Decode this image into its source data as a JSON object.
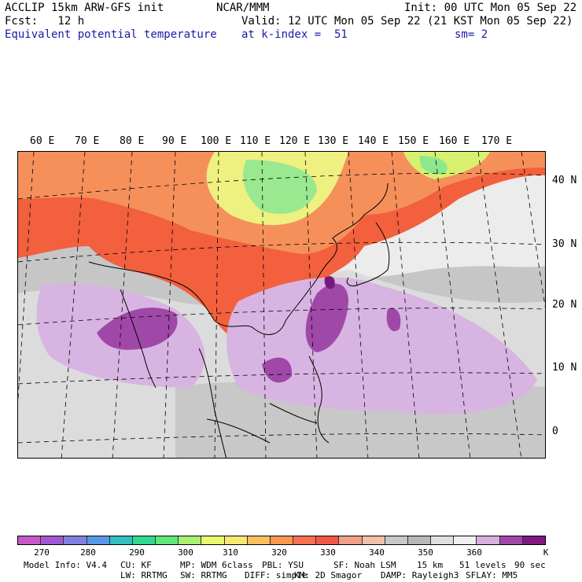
{
  "header": {
    "left_line1": "ACCLIP 15km ARW-GFS init",
    "left_line2": "Fcst:   12 h",
    "field_name": "Equivalent potential temperature",
    "center_line1": "NCAR/MMM",
    "valid": "Valid: 12 UTC Mon 05 Sep 22 (21 KST Mon 05 Sep 22)",
    "init": "Init: 00 UTC Mon 05 Sep 22",
    "level": "at k-index =  51",
    "smooth": "sm= 2"
  },
  "map": {
    "lon_labels": [
      "60 E",
      "70 E",
      "80 E",
      "90 E",
      "100 E",
      "110 E",
      "120 E",
      "130 E",
      "140 E",
      "150 E",
      "160 E",
      "170 E"
    ],
    "lat_labels": [
      "40 N",
      "30 N",
      "20 N",
      "10 N",
      "0"
    ],
    "colors": {
      "cold_green": "#8ce88c",
      "yellow_green": "#d8f070",
      "yellow": "#f4f07a",
      "orange": "#f5a050",
      "red": "#f25a3c",
      "salmon": "#f2a88a",
      "gray": "#c4c4c4",
      "light_gray": "#e6e6e6",
      "lilac": "#d8b4e2",
      "purple": "#a048a8",
      "dark_purple": "#7a1880"
    }
  },
  "colorbar": {
    "colors": [
      "#c858c8",
      "#a058d0",
      "#8080e0",
      "#5898e8",
      "#30c0c0",
      "#30d890",
      "#60e878",
      "#a8f070",
      "#e8f870",
      "#f8e870",
      "#f8c060",
      "#f89850",
      "#f87050",
      "#f05848",
      "#f0a088",
      "#f0c0a8",
      "#c8c8c8",
      "#b8b8b8",
      "#e0e0e0",
      "#f0f0f0",
      "#d8b0e0",
      "#a048a8",
      "#801880"
    ],
    "labels": [
      "270",
      "280",
      "290",
      "300",
      "310",
      "320",
      "330",
      "340",
      "350",
      "360"
    ],
    "unit": "K"
  },
  "footer": {
    "line1": [
      "Model Info: V4.4",
      "CU: KF",
      "MP: WDM 6class",
      "PBL: YSU",
      "SF: Noah LSM",
      "15 km",
      "51 levels",
      "90 sec"
    ],
    "line2": [
      "LW: RRTMG",
      "SW: RRTMG",
      "DIFF: simple",
      "KM: 2D Smagor",
      "DAMP: Rayleigh3",
      "SFLAY: MM5"
    ]
  }
}
